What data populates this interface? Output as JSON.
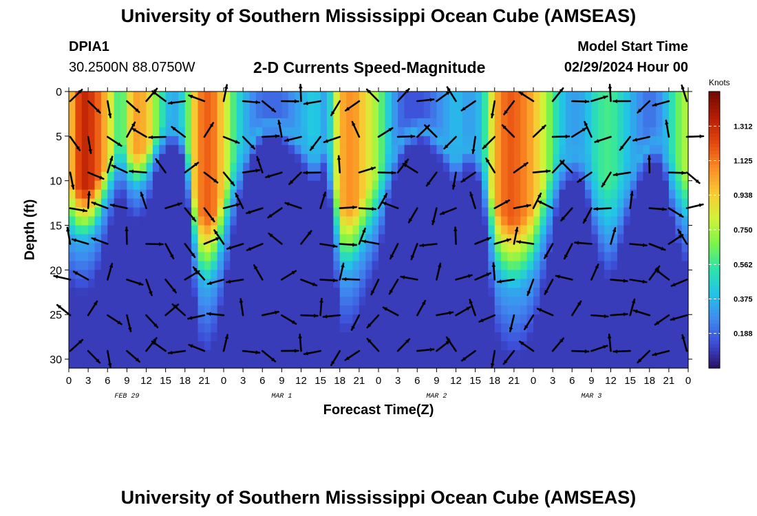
{
  "header": {
    "title": "University of Southern Mississippi Ocean Cube (AMSEAS)",
    "footer_title": "University of Southern Mississippi Ocean Cube (AMSEAS)",
    "station_id": "DPIA1",
    "coordinates": "30.2500N  88.0750W",
    "subtitle": "2-D Currents Speed-Magnitude",
    "model_start_label": "Model Start Time",
    "model_start_value": "02/29/2024 Hour 00"
  },
  "chart_data": {
    "type": "heatmap",
    "xlabel": "Forecast Time(Z)",
    "ylabel": "Depth (ft)",
    "x_hours_range": [
      0,
      96
    ],
    "x_tick_step_hours": 3,
    "x_tick_labels": [
      "0",
      "3",
      "6",
      "9",
      "12",
      "15",
      "18",
      "21",
      "0",
      "3",
      "6",
      "9",
      "12",
      "15",
      "18",
      "21",
      "0",
      "3",
      "6",
      "9",
      "12",
      "15",
      "18",
      "21",
      "0",
      "3",
      "6",
      "9",
      "12",
      "15",
      "18",
      "21",
      "0"
    ],
    "date_labels": [
      {
        "text": "FEB 29",
        "hour": 9
      },
      {
        "text": "MAR 1",
        "hour": 33
      },
      {
        "text": "MAR 2",
        "hour": 57
      },
      {
        "text": "MAR 3",
        "hour": 81
      }
    ],
    "ylim": [
      0,
      31
    ],
    "y_ticks": [
      0,
      5,
      10,
      15,
      20,
      25,
      30
    ],
    "colorbar": {
      "unit_label": "Knots",
      "ticks": [
        0.188,
        0.375,
        0.562,
        0.75,
        0.938,
        1.125,
        1.312
      ],
      "range": [
        0,
        1.5
      ],
      "colors": [
        "#2a0f63",
        "#3d4dd8",
        "#3f8cf0",
        "#22c5e6",
        "#2ee5a6",
        "#7ef548",
        "#d4f238",
        "#f8c932",
        "#fb8b24",
        "#e4460e",
        "#b61c03",
        "#6f0a02"
      ]
    },
    "heat_columns": [
      {
        "hour": 0,
        "surface_speed": 0.9,
        "bottom_depth": 16
      },
      {
        "hour": 2,
        "surface_speed": 1.35,
        "bottom_depth": 17
      },
      {
        "hour": 4,
        "surface_speed": 1.25,
        "bottom_depth": 16
      },
      {
        "hour": 6,
        "surface_speed": 0.95,
        "bottom_depth": 12
      },
      {
        "hour": 8,
        "surface_speed": 0.5,
        "bottom_depth": 8
      },
      {
        "hour": 10,
        "surface_speed": 1.05,
        "bottom_depth": 11
      },
      {
        "hour": 12,
        "surface_speed": 1.0,
        "bottom_depth": 10
      },
      {
        "hour": 14,
        "surface_speed": 0.6,
        "bottom_depth": 6
      },
      {
        "hour": 16,
        "surface_speed": 0.3,
        "bottom_depth": 4
      },
      {
        "hour": 18,
        "surface_speed": 0.5,
        "bottom_depth": 6
      },
      {
        "hour": 20,
        "surface_speed": 1.1,
        "bottom_depth": 21
      },
      {
        "hour": 22,
        "surface_speed": 1.2,
        "bottom_depth": 22
      },
      {
        "hour": 24,
        "surface_speed": 0.9,
        "bottom_depth": 17
      },
      {
        "hour": 26,
        "surface_speed": 0.5,
        "bottom_depth": 10
      },
      {
        "hour": 28,
        "surface_speed": 0.3,
        "bottom_depth": 6
      },
      {
        "hour": 30,
        "surface_speed": 0.2,
        "bottom_depth": 4
      },
      {
        "hour": 33,
        "surface_speed": 0.2,
        "bottom_depth": 4
      },
      {
        "hour": 36,
        "surface_speed": 0.35,
        "bottom_depth": 6
      },
      {
        "hour": 38,
        "surface_speed": 0.45,
        "bottom_depth": 8
      },
      {
        "hour": 40,
        "surface_speed": 0.3,
        "bottom_depth": 6
      },
      {
        "hour": 42,
        "surface_speed": 1.0,
        "bottom_depth": 20
      },
      {
        "hour": 44,
        "surface_speed": 1.1,
        "bottom_depth": 20
      },
      {
        "hour": 46,
        "surface_speed": 0.9,
        "bottom_depth": 17
      },
      {
        "hour": 48,
        "surface_speed": 0.7,
        "bottom_depth": 14
      },
      {
        "hour": 50,
        "surface_speed": 0.35,
        "bottom_depth": 8
      },
      {
        "hour": 52,
        "surface_speed": 0.15,
        "bottom_depth": 5
      },
      {
        "hour": 55,
        "surface_speed": 0.15,
        "bottom_depth": 4
      },
      {
        "hour": 58,
        "surface_speed": 0.3,
        "bottom_depth": 6
      },
      {
        "hour": 60,
        "surface_speed": 0.4,
        "bottom_depth": 8
      },
      {
        "hour": 62,
        "surface_speed": 0.3,
        "bottom_depth": 6
      },
      {
        "hour": 64,
        "surface_speed": 0.4,
        "bottom_depth": 8
      },
      {
        "hour": 66,
        "surface_speed": 1.0,
        "bottom_depth": 20
      },
      {
        "hour": 68,
        "surface_speed": 1.2,
        "bottom_depth": 22
      },
      {
        "hour": 70,
        "surface_speed": 1.15,
        "bottom_depth": 22
      },
      {
        "hour": 72,
        "surface_speed": 1.0,
        "bottom_depth": 20
      },
      {
        "hour": 74,
        "surface_speed": 0.75,
        "bottom_depth": 15
      },
      {
        "hour": 76,
        "surface_speed": 0.45,
        "bottom_depth": 9
      },
      {
        "hour": 78,
        "surface_speed": 0.3,
        "bottom_depth": 7
      },
      {
        "hour": 80,
        "surface_speed": 0.35,
        "bottom_depth": 8
      },
      {
        "hour": 82,
        "surface_speed": 0.55,
        "bottom_depth": 14
      },
      {
        "hour": 84,
        "surface_speed": 0.6,
        "bottom_depth": 16
      },
      {
        "hour": 86,
        "surface_speed": 0.45,
        "bottom_depth": 12
      },
      {
        "hour": 88,
        "surface_speed": 0.3,
        "bottom_depth": 8
      },
      {
        "hour": 90,
        "surface_speed": 0.2,
        "bottom_depth": 6
      },
      {
        "hour": 92,
        "surface_speed": 0.3,
        "bottom_depth": 6
      },
      {
        "hour": 94,
        "surface_speed": 0.6,
        "bottom_depth": 12
      },
      {
        "hour": 96,
        "surface_speed": 0.8,
        "bottom_depth": 15
      }
    ],
    "vector_grid": {
      "hour_step": 3,
      "depths": [
        0,
        4,
        8,
        12,
        16,
        20,
        24,
        28
      ]
    }
  }
}
